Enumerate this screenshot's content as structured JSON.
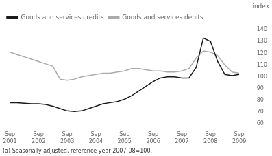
{
  "chart_data": {
    "type": "line",
    "ylabel": "index",
    "footnote": "(a) Seasonally adjusted, reference year 2007-08=100.",
    "x": [
      2001.75,
      2002.0,
      2002.25,
      2002.5,
      2002.75,
      2003.0,
      2003.25,
      2003.5,
      2003.75,
      2004.0,
      2004.25,
      2004.5,
      2004.75,
      2005.0,
      2005.25,
      2005.5,
      2005.75,
      2006.0,
      2006.25,
      2006.5,
      2006.75,
      2007.0,
      2007.25,
      2007.5,
      2007.75,
      2008.0,
      2008.25,
      2008.5,
      2008.75,
      2009.0,
      2009.25,
      2009.5,
      2009.75
    ],
    "series": [
      {
        "name": "Goods and services credits",
        "color": "#1a1a1a",
        "values": [
          78,
          78,
          77.5,
          77,
          77,
          76.5,
          75,
          73,
          71,
          70.5,
          71,
          73,
          75,
          77,
          78,
          79,
          81,
          84,
          88,
          92,
          96,
          99,
          100,
          100,
          99,
          99,
          108,
          133,
          130,
          113,
          102,
          101,
          102
        ]
      },
      {
        "name": "Goods and services debits",
        "color": "#aaaaaa",
        "values": [
          121,
          119,
          117,
          115,
          113,
          111,
          109,
          98,
          97,
          98,
          100,
          101,
          102,
          103,
          103,
          104,
          105,
          107,
          107,
          106,
          105,
          105,
          104,
          104,
          105,
          107,
          116,
          122,
          121,
          118,
          110,
          104,
          103
        ]
      }
    ],
    "xlim": [
      2001.5,
      2010.1
    ],
    "xticks": [
      {
        "value": 2001.75,
        "label": "Sep\n2001"
      },
      {
        "value": 2002.75,
        "label": "Sep\n2002"
      },
      {
        "value": 2003.75,
        "label": "Sep\n2003"
      },
      {
        "value": 2004.75,
        "label": "Sep\n2004"
      },
      {
        "value": 2005.75,
        "label": "Sep\n2005"
      },
      {
        "value": 2006.75,
        "label": "Sep\n2006"
      },
      {
        "value": 2007.75,
        "label": "Sep\n2007"
      },
      {
        "value": 2008.75,
        "label": "Sep\n2008"
      },
      {
        "value": 2009.75,
        "label": "Sep\n2009"
      }
    ],
    "ylim": [
      60,
      142
    ],
    "yticks": [
      60,
      70,
      80,
      90,
      100,
      110,
      120,
      130,
      140
    ],
    "legend": "upper left",
    "grid": false
  }
}
